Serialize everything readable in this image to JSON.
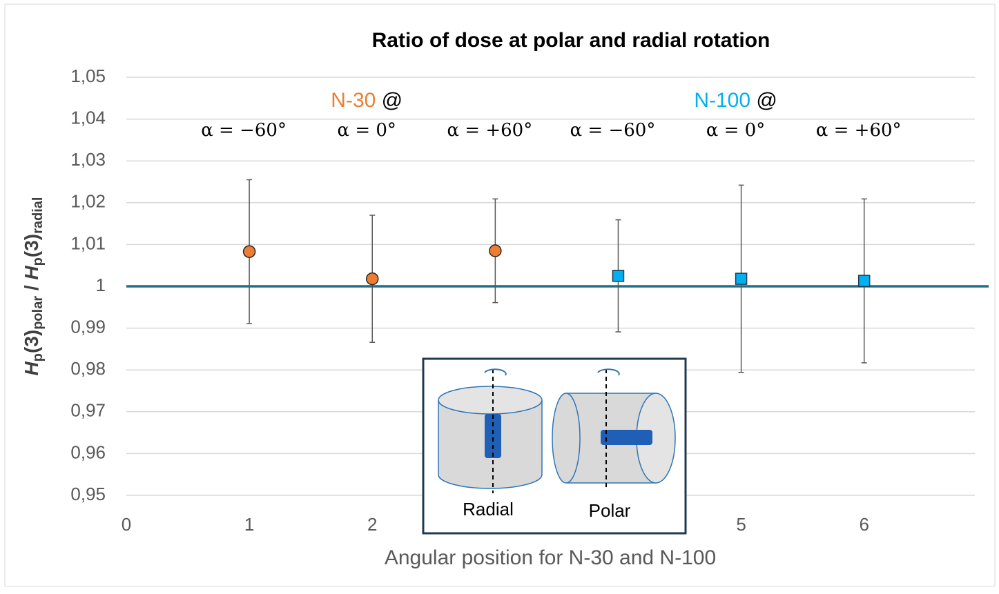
{
  "chart_data": {
    "type": "scatter",
    "title": "Ratio of dose at polar and radial rotation",
    "xlabel": "Angular position for N-30 and N-100",
    "ylabel_parts": [
      "H",
      "p",
      "(3)",
      "polar",
      " / ",
      "H",
      "p",
      "(3)",
      "radial"
    ],
    "xlim": [
      0,
      6.9
    ],
    "xticks": [
      0,
      1,
      2,
      5,
      6
    ],
    "ylim": [
      0.95,
      1.05
    ],
    "yticks": [
      {
        "value": 0.95,
        "label": "0,95"
      },
      {
        "value": 0.96,
        "label": "0,96"
      },
      {
        "value": 0.97,
        "label": "0,97"
      },
      {
        "value": 0.98,
        "label": "0,98"
      },
      {
        "value": 0.99,
        "label": "0,99"
      },
      {
        "value": 1,
        "label": "1"
      },
      {
        "value": 1.01,
        "label": "1,01"
      },
      {
        "value": 1.02,
        "label": "1,02"
      },
      {
        "value": 1.03,
        "label": "1,03"
      },
      {
        "value": 1.04,
        "label": "1,04"
      },
      {
        "value": 1.05,
        "label": "1,05"
      }
    ],
    "grid": true,
    "reference_line": 1,
    "reference_color": "#1f6e8c",
    "group_suffix": "@",
    "series": [
      {
        "name": "N-30",
        "color": "#ed7d31",
        "marker": "circle",
        "x": [
          1,
          2,
          3
        ],
        "values": [
          1.0083,
          1.0018,
          1.0085
        ],
        "errors": [
          0.0172,
          0.0152,
          0.0124
        ],
        "point_labels": [
          "α = −60°",
          "α = 0°",
          "α = +60°"
        ]
      },
      {
        "name": "N-100",
        "color": "#00b0f0",
        "marker": "square",
        "x": [
          4,
          5,
          6
        ],
        "values": [
          1.0025,
          1.0018,
          1.0013
        ],
        "errors": [
          0.0134,
          0.0224,
          0.0196
        ],
        "point_labels": [
          "α = −60°",
          "α = 0°",
          "α = +60°"
        ]
      }
    ],
    "inset_labels": [
      "Radial",
      "Polar"
    ]
  }
}
